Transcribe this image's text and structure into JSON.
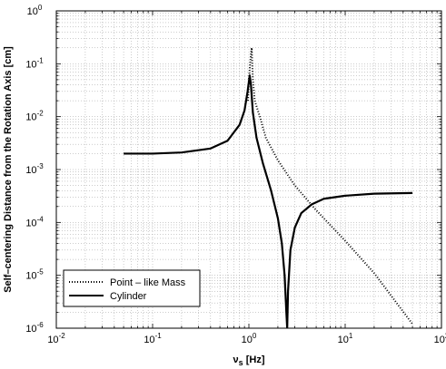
{
  "chart_data": {
    "type": "line",
    "title": "",
    "xlabel": {
      "main": "ν",
      "sub": "s",
      "unit": " [Hz]"
    },
    "ylabel": "Self–centering Distance from the Rotation Axis [cm]",
    "xscale": "log",
    "yscale": "log",
    "xlim": [
      0.01,
      100
    ],
    "ylim": [
      1e-06,
      1
    ],
    "grid": true,
    "legend_position": "bottom-left",
    "x_ticks": [
      {
        "value": 0.01,
        "base": "10",
        "exp": "-2"
      },
      {
        "value": 0.1,
        "base": "10",
        "exp": "-1"
      },
      {
        "value": 1,
        "base": "10",
        "exp": "0"
      },
      {
        "value": 10,
        "base": "10",
        "exp": "1"
      },
      {
        "value": 100,
        "base": "10",
        "exp": "2"
      }
    ],
    "y_ticks": [
      {
        "value": 1e-06,
        "base": "10",
        "exp": "-6"
      },
      {
        "value": 1e-05,
        "base": "10",
        "exp": "-5"
      },
      {
        "value": 0.0001,
        "base": "10",
        "exp": "-4"
      },
      {
        "value": 0.001,
        "base": "10",
        "exp": "-3"
      },
      {
        "value": 0.01,
        "base": "10",
        "exp": "-2"
      },
      {
        "value": 0.1,
        "base": "10",
        "exp": "-1"
      },
      {
        "value": 1,
        "base": "10",
        "exp": "0"
      }
    ],
    "series": [
      {
        "name": "Point – like Mass",
        "style": "dotted",
        "color": "#000000",
        "points": [
          [
            0.98,
            0.02
          ],
          [
            1.0,
            0.05
          ],
          [
            1.03,
            0.1
          ],
          [
            1.05,
            0.15
          ],
          [
            1.07,
            0.2
          ],
          [
            1.1,
            0.05
          ],
          [
            1.15,
            0.02
          ],
          [
            1.3,
            0.01
          ],
          [
            1.5,
            0.004
          ],
          [
            2.0,
            0.0015
          ],
          [
            3.0,
            0.0005
          ],
          [
            5.0,
            0.00017
          ],
          [
            10.0,
            4.5e-05
          ],
          [
            20.0,
            1.1e-05
          ],
          [
            50.0,
            1.2e-06
          ]
        ]
      },
      {
        "name": "Cylinder",
        "style": "solid",
        "color": "#000000",
        "points": [
          [
            0.05,
            0.002
          ],
          [
            0.1,
            0.002
          ],
          [
            0.2,
            0.0021
          ],
          [
            0.4,
            0.0025
          ],
          [
            0.6,
            0.0035
          ],
          [
            0.8,
            0.007
          ],
          [
            0.9,
            0.013
          ],
          [
            0.97,
            0.03
          ],
          [
            1.02,
            0.06
          ],
          [
            1.05,
            0.04
          ],
          [
            1.1,
            0.012
          ],
          [
            1.2,
            0.004
          ],
          [
            1.4,
            0.0013
          ],
          [
            1.7,
            0.0004
          ],
          [
            2.0,
            0.00012
          ],
          [
            2.2,
            4e-05
          ],
          [
            2.35,
            1e-05
          ],
          [
            2.45,
            2e-06
          ],
          [
            2.5,
            1e-06
          ],
          [
            2.55,
            5e-06
          ],
          [
            2.7,
            3e-05
          ],
          [
            3.0,
            8e-05
          ],
          [
            3.5,
            0.00015
          ],
          [
            4.5,
            0.00022
          ],
          [
            6.0,
            0.00028
          ],
          [
            10.0,
            0.00032
          ],
          [
            20.0,
            0.00035
          ],
          [
            50.0,
            0.00036
          ]
        ]
      }
    ]
  }
}
